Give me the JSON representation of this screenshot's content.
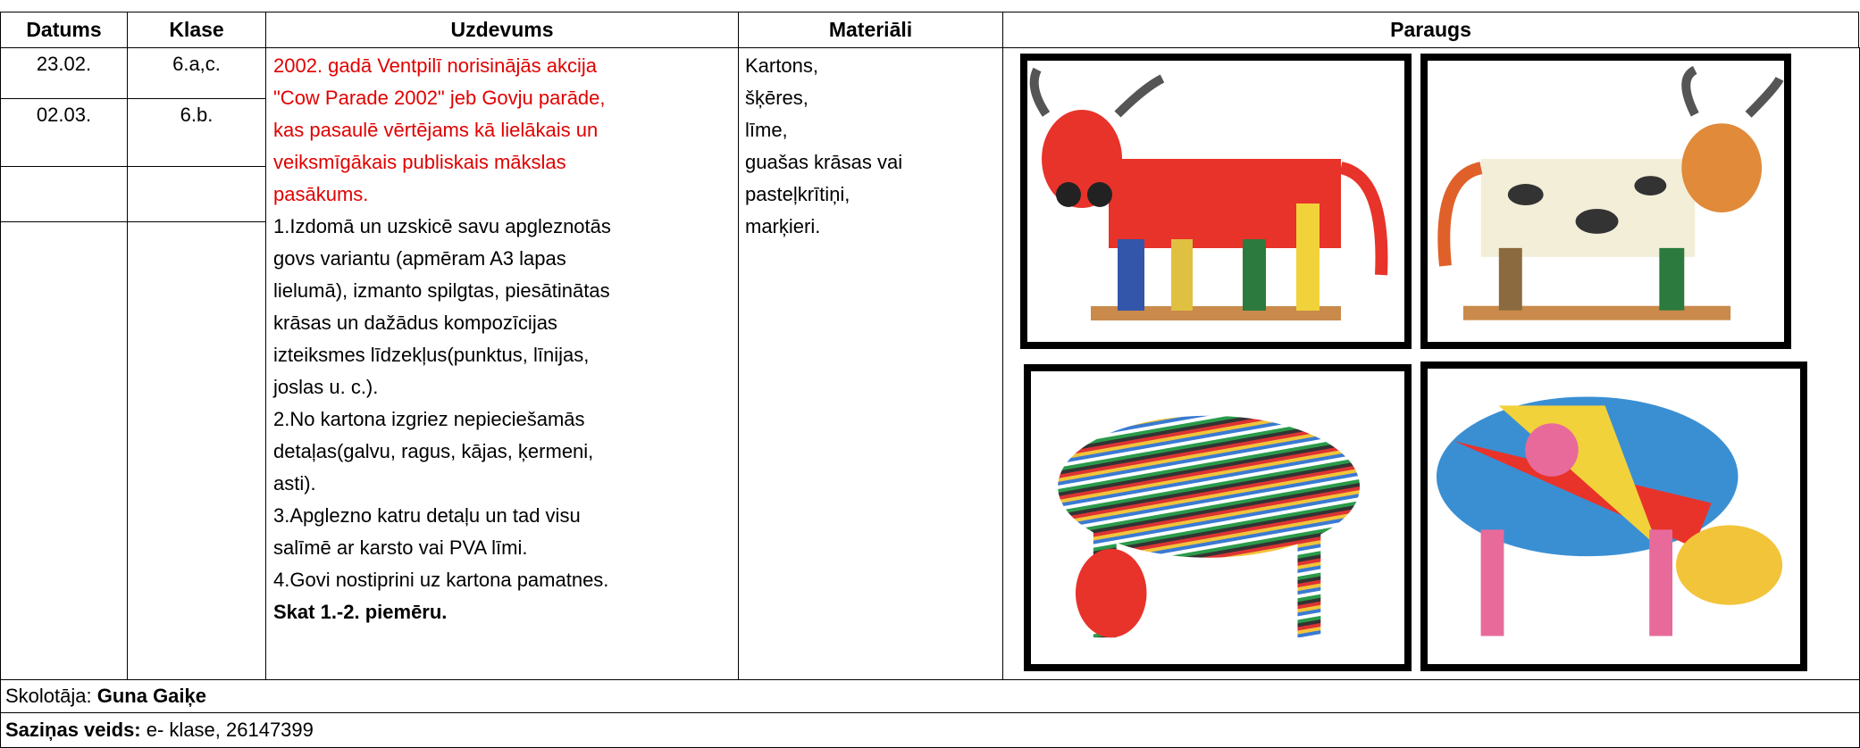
{
  "table": {
    "headers": [
      "Datums",
      "Klase",
      "Uzdevums",
      "Materiāli",
      "Paraugs"
    ],
    "dates": [
      "23.02.",
      "02.03."
    ],
    "classes": [
      "6.a,c.",
      "6.b."
    ],
    "intro_lines": [
      "2002. gadā Ventpilī norisinājās akcija",
      "\"Cow Parade 2002\" jeb Govju parāde,",
      "kas pasaulē vērtējams kā lielākais un",
      "veiksmīgākais publiskais mākslas",
      "pasākums."
    ],
    "task_lines": [
      "1.Izdomā un uzskicē savu apgleznotās",
      "govs  variantu (apmēram A3 lapas",
      "lielumā), izmanto spilgtas, piesātinātas",
      "krāsas un dažādus kompozīcijas",
      "izteiksmes līdzekļus(punktus, līnijas,",
      "joslas u. c.).",
      "2.No kartona izgriez nepieciešamās",
      "detaļas(galvu, ragus, kājas, ķermeni,",
      "asti).",
      "3.Apglezno katru detaļu un tad visu",
      "salīmē ar karsto vai PVA līmi.",
      "4.Govi nostiprini uz kartona pamatnes."
    ],
    "task_note": "Skat 1.-2. piemēru.",
    "materials": [
      "Kartons,",
      "šķēres,",
      "līme,",
      "guašas krāsas vai",
      "pasteļkrītiņi,",
      "marķieri."
    ]
  },
  "footer": {
    "teacher_label": "Skolotāja: ",
    "teacher_name": "Guna Gaiķe",
    "contact_label": "Saziņas veids:",
    "contact_value": " e- klase, 26147399"
  }
}
